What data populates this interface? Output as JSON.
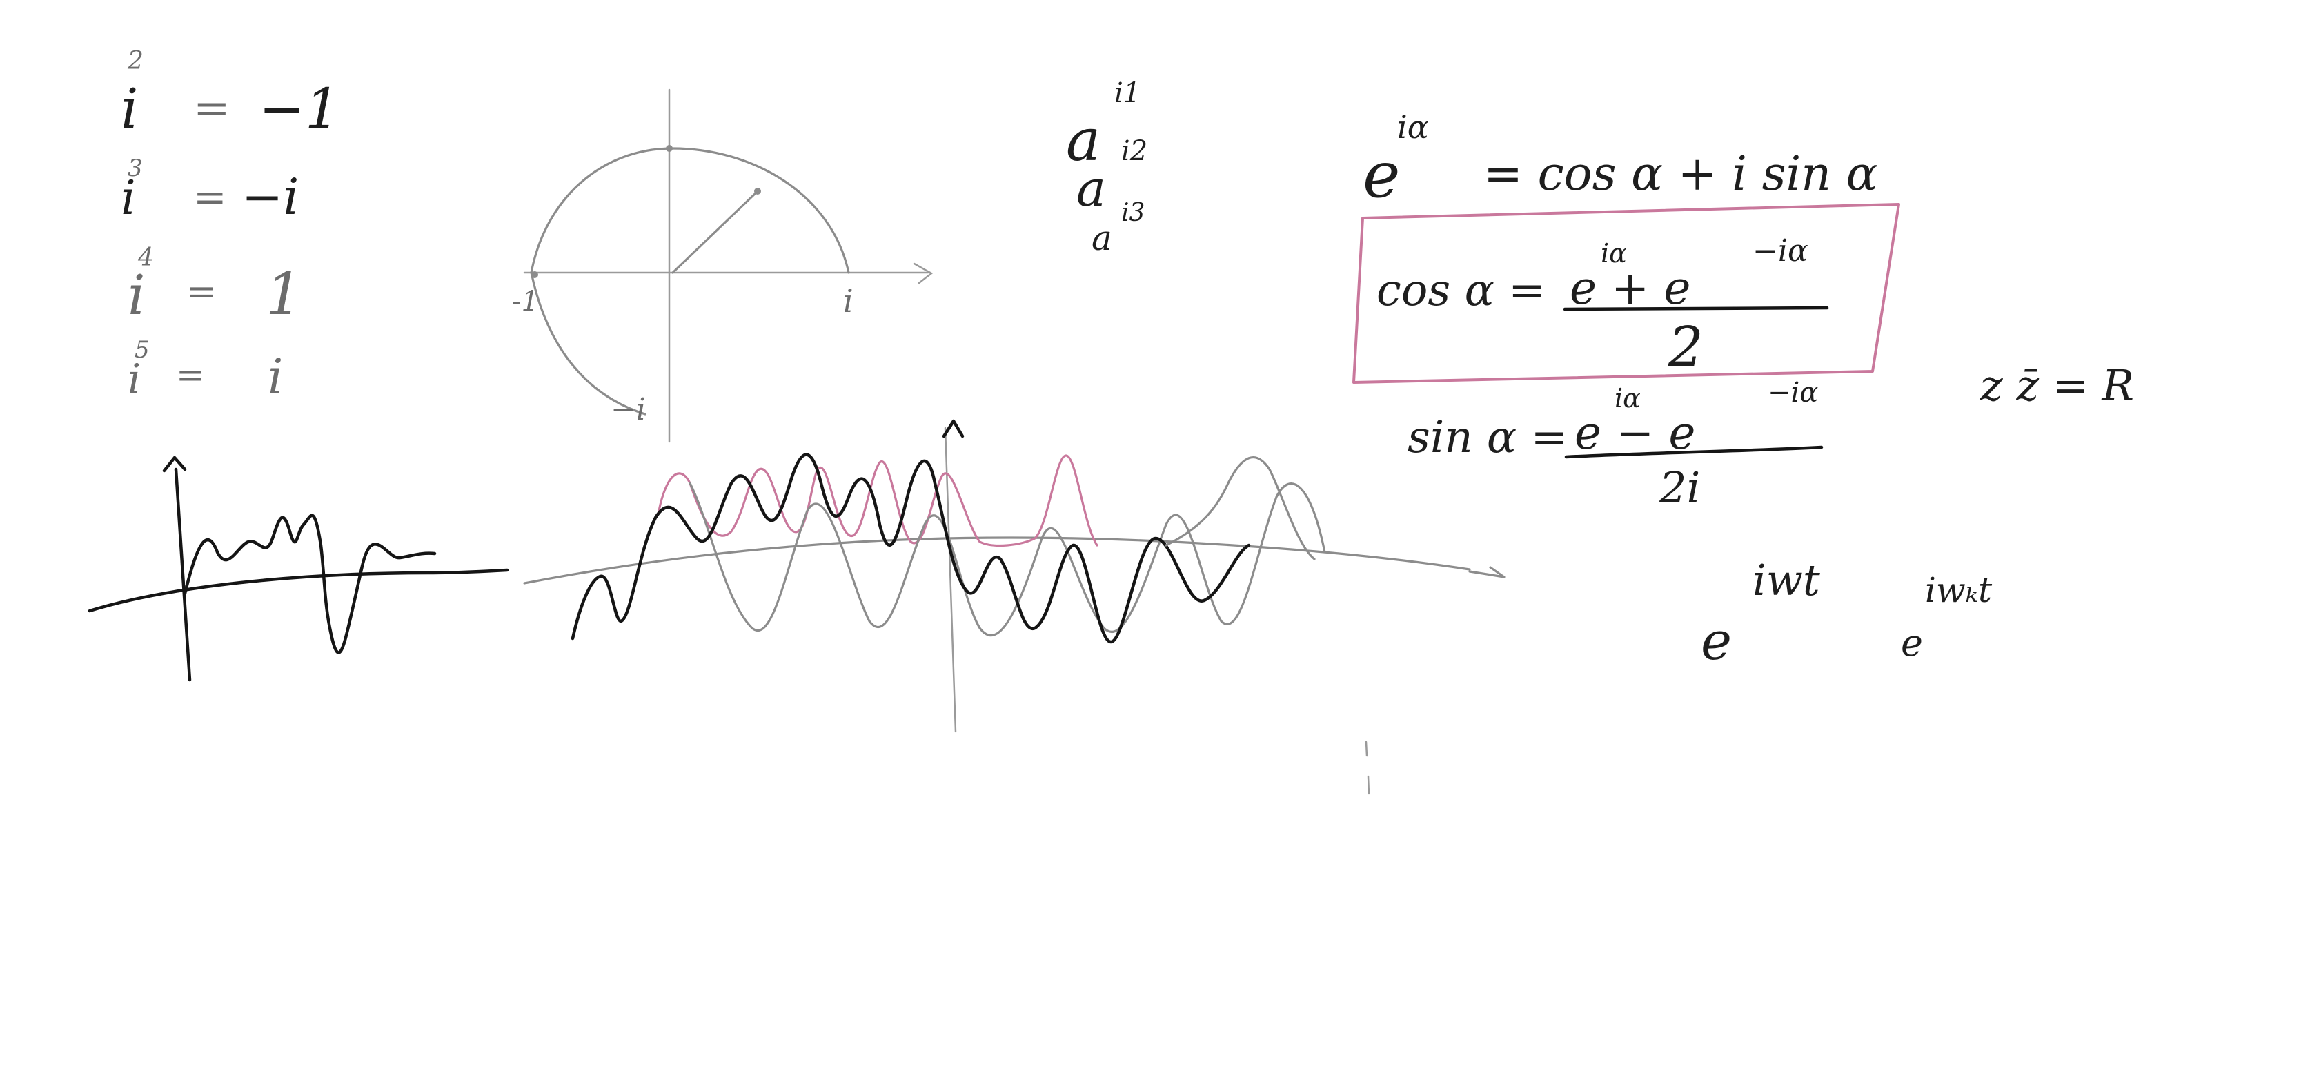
{
  "powers_of_i": [
    {
      "exp": "2",
      "lhs": "i",
      "eq": "=",
      "rhs": "−1"
    },
    {
      "exp": "3",
      "lhs": "i",
      "eq": "=",
      "rhs": "−i"
    },
    {
      "exp": "4",
      "lhs": "i",
      "eq": "=",
      "rhs": "1"
    },
    {
      "exp": "5",
      "lhs": "i",
      "eq": "=",
      "rhs": "i"
    }
  ],
  "unit_circle": {
    "label_right": "i",
    "label_left": "-1",
    "label_bottom": "−i"
  },
  "a_powers": [
    {
      "base": "a",
      "exp": "i1"
    },
    {
      "base": "a",
      "exp": "i2"
    },
    {
      "base": "a",
      "exp": "i3"
    }
  ],
  "euler": {
    "base": "e",
    "exp": "iα",
    "rhs": "= cos α + i sin α"
  },
  "cos_formula": {
    "lhs": "cos α =",
    "numerator": "e  +  e",
    "num_exp1": "iα",
    "num_exp2": "−iα",
    "denominator": "2",
    "frame_color": "#c9789c"
  },
  "sin_formula": {
    "lhs": "sin α =",
    "numerator": "e  −  e",
    "num_exp1": "iα",
    "num_exp2": "−iα",
    "denominator": "2i"
  },
  "modulus": "z z̄ = R",
  "exponentials": [
    {
      "base": "e",
      "exp": "iwt"
    },
    {
      "base": "e",
      "exp": "iwₖt"
    }
  ],
  "colors": {
    "ink": "#151515",
    "ink_light": "#8c8c8c",
    "pink": "#c9789c"
  }
}
